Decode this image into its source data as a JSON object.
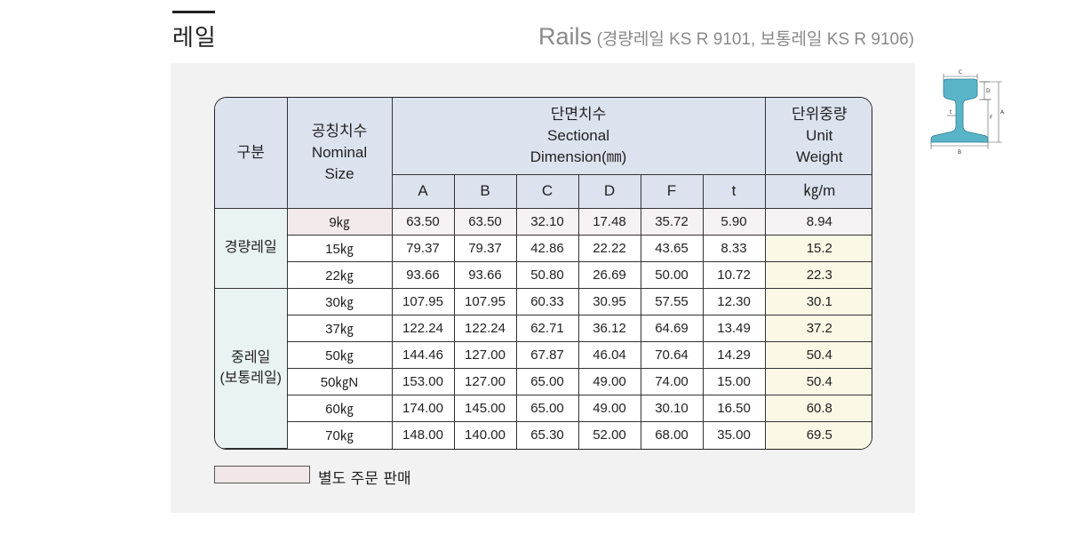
{
  "header": {
    "title_ko": "레일",
    "title_en_big": "Rails",
    "title_en_small": "(경량레일 KS R 9101, 보통레일 KS R 9106)"
  },
  "table": {
    "head": {
      "category": "구분",
      "nominal_ko": "공칭치수",
      "nominal_en": "Nominal",
      "nominal_en2": "Size",
      "section_ko": "단면치수",
      "section_en": "Sectional",
      "section_en2": "Dimension(㎜)",
      "weight_ko": "단위중량",
      "weight_en": "Unit",
      "weight_en2": "Weight",
      "cols": [
        "A",
        "B",
        "C",
        "D",
        "F",
        "t"
      ],
      "weight_unit": "㎏/m"
    },
    "groups": [
      {
        "label": "경량레일",
        "label2": "",
        "rows": [
          {
            "size": "9㎏",
            "A": "63.50",
            "B": "63.50",
            "C": "32.10",
            "D": "17.48",
            "F": "35.72",
            "t": "5.90",
            "w": "8.94",
            "special": true
          },
          {
            "size": "15㎏",
            "A": "79.37",
            "B": "79.37",
            "C": "42.86",
            "D": "22.22",
            "F": "43.65",
            "t": "8.33",
            "w": "15.2",
            "special": false
          },
          {
            "size": "22㎏",
            "A": "93.66",
            "B": "93.66",
            "C": "50.80",
            "D": "26.69",
            "F": "50.00",
            "t": "10.72",
            "w": "22.3",
            "special": false
          }
        ]
      },
      {
        "label": "중레일",
        "label2": "(보통레일)",
        "rows": [
          {
            "size": "30㎏",
            "A": "107.95",
            "B": "107.95",
            "C": "60.33",
            "D": "30.95",
            "F": "57.55",
            "t": "12.30",
            "w": "30.1",
            "special": false
          },
          {
            "size": "37㎏",
            "A": "122.24",
            "B": "122.24",
            "C": "62.71",
            "D": "36.12",
            "F": "64.69",
            "t": "13.49",
            "w": "37.2",
            "special": false
          },
          {
            "size": "50㎏",
            "A": "144.46",
            "B": "127.00",
            "C": "67.87",
            "D": "46.04",
            "F": "70.64",
            "t": "14.29",
            "w": "50.4",
            "special": false
          },
          {
            "size": "50㎏N",
            "A": "153.00",
            "B": "127.00",
            "C": "65.00",
            "D": "49.00",
            "F": "74.00",
            "t": "15.00",
            "w": "50.4",
            "special": false
          },
          {
            "size": "60㎏",
            "A": "174.00",
            "B": "145.00",
            "C": "65.00",
            "D": "49.00",
            "F": "30.10",
            "t": "16.50",
            "w": "60.8",
            "special": false
          },
          {
            "size": "70㎏",
            "A": "148.00",
            "B": "140.00",
            "C": "65.30",
            "D": "52.00",
            "F": "68.00",
            "t": "35.00",
            "w": "69.5",
            "special": false
          }
        ]
      }
    ]
  },
  "legend": {
    "text": "별도 주문 판매",
    "color": "#f1e6e8"
  },
  "diagram": {
    "icon": "rail-cross-section-icon",
    "color": "#5ab4c8",
    "labels": {
      "c": "C",
      "d": "D",
      "a": "A",
      "f": "F",
      "t": "t",
      "b": "B"
    }
  }
}
